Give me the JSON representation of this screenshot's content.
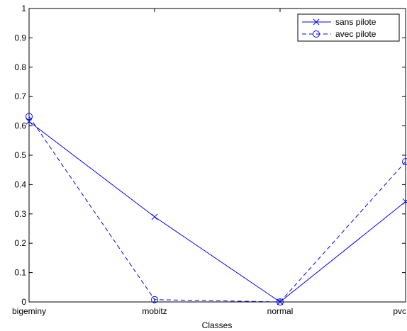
{
  "chart_data": {
    "type": "line",
    "categories": [
      "bigeminy",
      "mobitz",
      "normal",
      "pvc"
    ],
    "xlabel": "Classes",
    "ylabel": "",
    "ylim": [
      0,
      1
    ],
    "yticks": [
      "0",
      "0.1",
      "0.2",
      "0.3",
      "0.4",
      "0.5",
      "0.6",
      "0.7",
      "0.8",
      "0.9",
      "1"
    ],
    "series": [
      {
        "name": "sans pilote",
        "values": [
          0.615,
          0.29,
          0.0,
          0.342
        ],
        "line_style": "solid",
        "marker": "x",
        "color": "#0000ff"
      },
      {
        "name": "avec pilote",
        "values": [
          0.632,
          0.008,
          0.0,
          0.478
        ],
        "line_style": "dashed",
        "marker": "o",
        "color": "#0000ff"
      }
    ],
    "legend_position": "top-right",
    "grid": false
  }
}
